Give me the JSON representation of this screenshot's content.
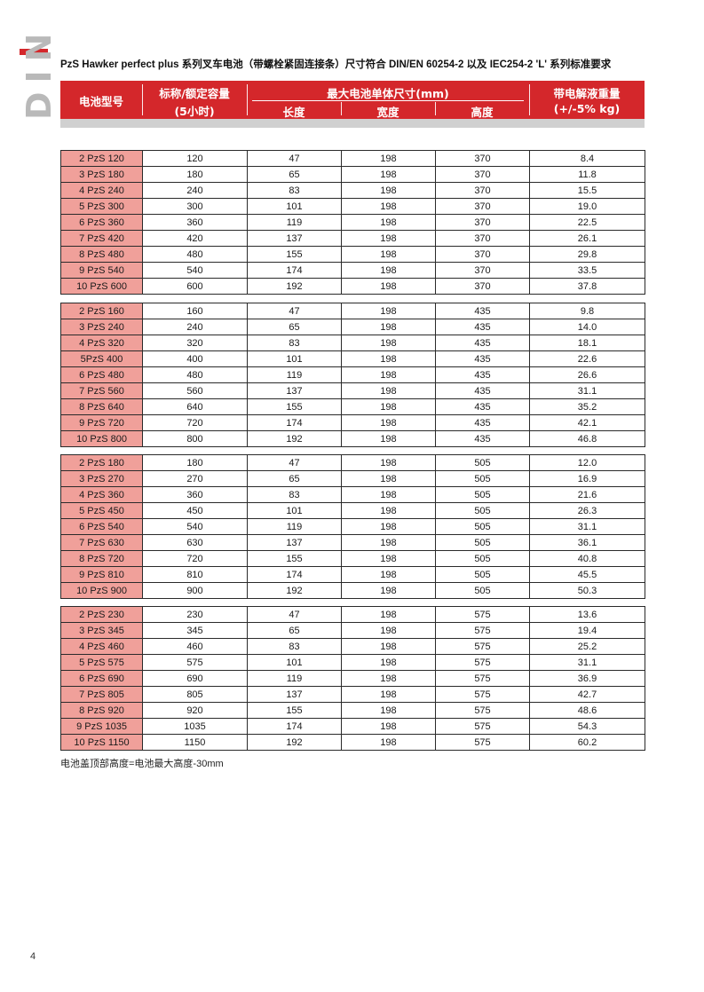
{
  "side_label": "DIN",
  "title": "PzS Hawker perfect plus 系列叉车电池（带螺栓紧固连接条）尺寸符合 DIN/EN 60254-2 以及 IEC254-2 'L' 系列标准要求",
  "header": {
    "model": "电池型号",
    "capacity_line1": "标称/额定容量",
    "capacity_line2": "(5小时)",
    "dims": "最大电池单体尺寸(mm)",
    "length": "长度",
    "width": "宽度",
    "height": "高度",
    "weight_line1": "带电解液重量",
    "weight_line2": "(+/-5% kg)"
  },
  "groups": [
    {
      "rows": [
        [
          "2 PzS 120",
          "120",
          "47",
          "198",
          "370",
          "8.4"
        ],
        [
          "3 PzS 180",
          "180",
          "65",
          "198",
          "370",
          "11.8"
        ],
        [
          "4 PzS 240",
          "240",
          "83",
          "198",
          "370",
          "15.5"
        ],
        [
          "5 PzS 300",
          "300",
          "101",
          "198",
          "370",
          "19.0"
        ],
        [
          "6 PzS 360",
          "360",
          "119",
          "198",
          "370",
          "22.5"
        ],
        [
          "7 PzS 420",
          "420",
          "137",
          "198",
          "370",
          "26.1"
        ],
        [
          "8 PzS 480",
          "480",
          "155",
          "198",
          "370",
          "29.8"
        ],
        [
          "9 PzS 540",
          "540",
          "174",
          "198",
          "370",
          "33.5"
        ],
        [
          "10 PzS 600",
          "600",
          "192",
          "198",
          "370",
          "37.8"
        ]
      ]
    },
    {
      "rows": [
        [
          "2 PzS 160",
          "160",
          "47",
          "198",
          "435",
          "9.8"
        ],
        [
          "3 PzS 240",
          "240",
          "65",
          "198",
          "435",
          "14.0"
        ],
        [
          "4 PzS 320",
          "320",
          "83",
          "198",
          "435",
          "18.1"
        ],
        [
          "5PzS 400",
          "400",
          "101",
          "198",
          "435",
          "22.6"
        ],
        [
          "6 PzS 480",
          "480",
          "119",
          "198",
          "435",
          "26.6"
        ],
        [
          "7 PzS 560",
          "560",
          "137",
          "198",
          "435",
          "31.1"
        ],
        [
          "8 PzS 640",
          "640",
          "155",
          "198",
          "435",
          "35.2"
        ],
        [
          "9 PzS 720",
          "720",
          "174",
          "198",
          "435",
          "42.1"
        ],
        [
          "10 PzS 800",
          "800",
          "192",
          "198",
          "435",
          "46.8"
        ]
      ]
    },
    {
      "rows": [
        [
          "2 PzS 180",
          "180",
          "47",
          "198",
          "505",
          "12.0"
        ],
        [
          "3 PzS 270",
          "270",
          "65",
          "198",
          "505",
          "16.9"
        ],
        [
          "4 PzS 360",
          "360",
          "83",
          "198",
          "505",
          "21.6"
        ],
        [
          "5 PzS 450",
          "450",
          "101",
          "198",
          "505",
          "26.3"
        ],
        [
          "6 PzS 540",
          "540",
          "119",
          "198",
          "505",
          "31.1"
        ],
        [
          "7 PzS 630",
          "630",
          "137",
          "198",
          "505",
          "36.1"
        ],
        [
          "8 PzS 720",
          "720",
          "155",
          "198",
          "505",
          "40.8"
        ],
        [
          "9 PzS 810",
          "810",
          "174",
          "198",
          "505",
          "45.5"
        ],
        [
          "10 PzS 900",
          "900",
          "192",
          "198",
          "505",
          "50.3"
        ]
      ]
    },
    {
      "rows": [
        [
          "2 PzS 230",
          "230",
          "47",
          "198",
          "575",
          "13.6"
        ],
        [
          "3 PzS 345",
          "345",
          "65",
          "198",
          "575",
          "19.4"
        ],
        [
          "4 PzS 460",
          "460",
          "83",
          "198",
          "575",
          "25.2"
        ],
        [
          "5 PzS 575",
          "575",
          "101",
          "198",
          "575",
          "31.1"
        ],
        [
          "6 PzS 690",
          "690",
          "119",
          "198",
          "575",
          "36.9"
        ],
        [
          "7 PzS 805",
          "805",
          "137",
          "198",
          "575",
          "42.7"
        ],
        [
          "8 PzS 920",
          "920",
          "155",
          "198",
          "575",
          "48.6"
        ],
        [
          "9 PzS 1035",
          "1035",
          "174",
          "198",
          "575",
          "54.3"
        ],
        [
          "10 PzS 1150",
          "1150",
          "192",
          "198",
          "575",
          "60.2"
        ]
      ]
    }
  ],
  "note": "电池盖顶部高度=电池最大高度-30mm",
  "page_number": "4",
  "colors": {
    "accent": "#d4272b",
    "model_cell": "#f0a09a",
    "side_text": "#b9b9b9"
  }
}
